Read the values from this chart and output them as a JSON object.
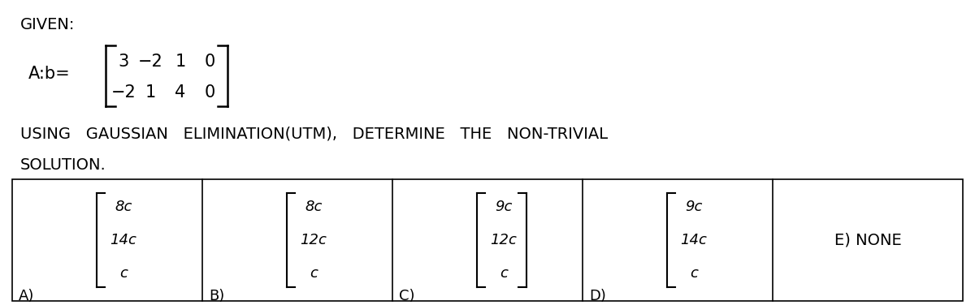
{
  "title_text": "GIVEN:",
  "matrix_label": "A:b=",
  "matrix_row1": [
    "3",
    "−2",
    "1",
    "0"
  ],
  "matrix_row2": [
    "−2",
    "1",
    "4",
    "0"
  ],
  "problem_line1": "USING   GAUSSIAN   ELIMINATION(UTM),   DETERMINE   THE   NON-TRIVIAL",
  "problem_line2": "SOLUTION.",
  "options": [
    {
      "label": "A)",
      "vector": [
        "8c",
        "14c",
        "c"
      ],
      "bracket": "left_only"
    },
    {
      "label": "B)",
      "vector": [
        "8c",
        "12c",
        "c"
      ],
      "bracket": "left_only"
    },
    {
      "label": "C)",
      "vector": [
        "9c",
        "12c",
        "c"
      ],
      "bracket": "both"
    },
    {
      "label": "D)",
      "vector": [
        "9c",
        "14c",
        "c"
      ],
      "bracket": "left_only"
    },
    {
      "label": "E) NONE",
      "vector": null,
      "bracket": "none"
    }
  ],
  "bg_color": "#ffffff",
  "text_color": "#000000",
  "fig_width": 12.0,
  "fig_height": 3.76,
  "dpi": 100
}
